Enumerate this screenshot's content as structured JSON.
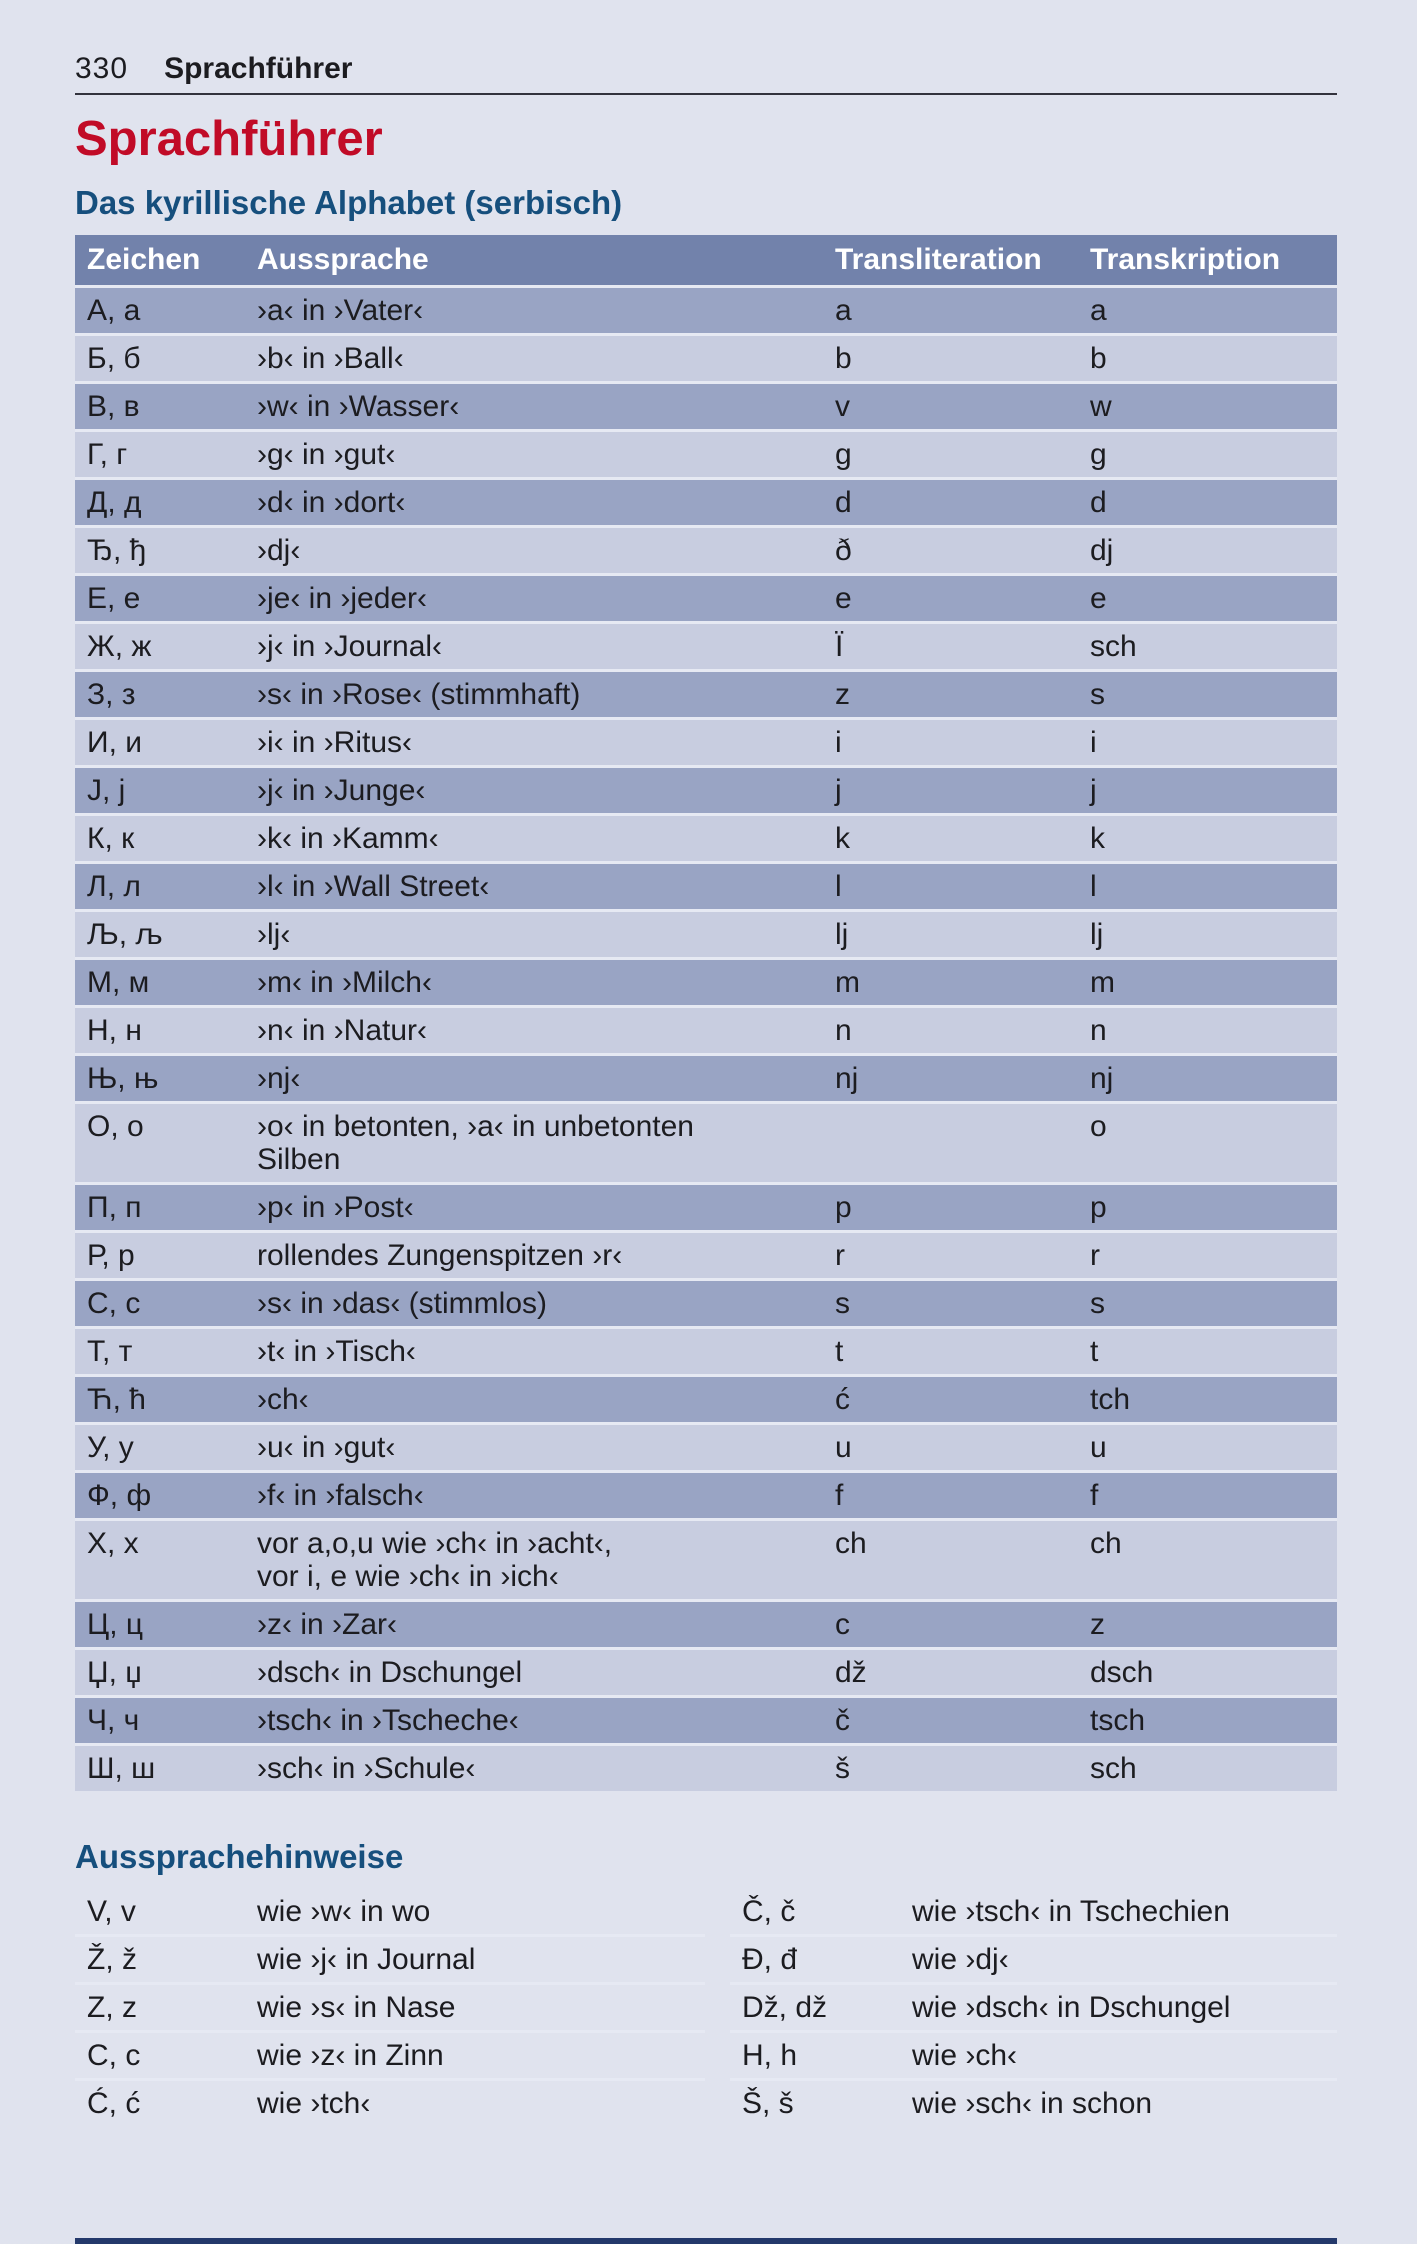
{
  "page": {
    "number": "330",
    "running_title": "Sprachführer"
  },
  "title": "Sprachführer",
  "alphabet": {
    "heading": "Das kyrillische Alphabet (serbisch)",
    "columns": {
      "zeichen": "Zeichen",
      "aussprache": "Aussprache",
      "transliteration": "Transliteration",
      "transkription": "Transkription"
    },
    "rows": [
      {
        "z": "А, а",
        "a": "›a‹ in ›Vater‹",
        "tl": "a",
        "tk": "a"
      },
      {
        "z": "Б, б",
        "a": "›b‹ in ›Ball‹",
        "tl": "b",
        "tk": "b"
      },
      {
        "z": "В, в",
        "a": "›w‹ in ›Wasser‹",
        "tl": "v",
        "tk": "w"
      },
      {
        "z": "Г, г",
        "a": "›g‹ in ›gut‹",
        "tl": "g",
        "tk": "g"
      },
      {
        "z": "Д, д",
        "a": "›d‹ in ›dort‹",
        "tl": "d",
        "tk": "d"
      },
      {
        "z": "Ђ, ђ",
        "a": "›dj‹",
        "tl": "ð",
        "tk": "dj"
      },
      {
        "z": "Е, е",
        "a": "›je‹ in ›jeder‹",
        "tl": "e",
        "tk": "e"
      },
      {
        "z": "Ж, ж",
        "a": "›j‹ in ›Journal‹",
        "tl": "Ï",
        "tk": "sch"
      },
      {
        "z": "З, з",
        "a": "›s‹ in ›Rose‹ (stimmhaft)",
        "tl": "z",
        "tk": "s"
      },
      {
        "z": "И, и",
        "a": "›i‹ in ›Ritus‹",
        "tl": "i",
        "tk": "i"
      },
      {
        "z": "Ј, ј",
        "a": "›j‹ in ›Junge‹",
        "tl": "j",
        "tk": "j"
      },
      {
        "z": "К, к",
        "a": "›k‹ in ›Kamm‹",
        "tl": "k",
        "tk": "k"
      },
      {
        "z": "Л, л",
        "a": "›l‹ in ›Wall Street‹",
        "tl": "l",
        "tk": "l"
      },
      {
        "z": "Љ, љ",
        "a": "›lj‹",
        "tl": "lj",
        "tk": "lj"
      },
      {
        "z": "М, м",
        "a": "›m‹ in ›Milch‹",
        "tl": "m",
        "tk": "m"
      },
      {
        "z": "Н, н",
        "a": "›n‹ in ›Natur‹",
        "tl": "n",
        "tk": "n"
      },
      {
        "z": "Њ, њ",
        "a": "›nj‹",
        "tl": "nj",
        "tk": "nj"
      },
      {
        "z": "О, о",
        "a": "›o‹ in betonten, ›a‹ in unbetonten\nSilben",
        "tl": "",
        "tk": "o"
      },
      {
        "z": "П, п",
        "a": "›p‹ in ›Post‹",
        "tl": "p",
        "tk": "p"
      },
      {
        "z": "Р, р",
        "a": "rollendes Zungenspitzen ›r‹",
        "tl": "r",
        "tk": "r"
      },
      {
        "z": "С, с",
        "a": "›s‹ in ›das‹ (stimmlos)",
        "tl": "s",
        "tk": "s"
      },
      {
        "z": "Т, т",
        "a": "›t‹ in ›Tisch‹",
        "tl": "t",
        "tk": "t"
      },
      {
        "z": "Ћ, ћ",
        "a": "›ch‹",
        "tl": "ć",
        "tk": "tch"
      },
      {
        "z": "У, у",
        "a": "›u‹ in ›gut‹",
        "tl": "u",
        "tk": "u"
      },
      {
        "z": "Ф, ф",
        "a": "›f‹ in ›falsch‹",
        "tl": "f",
        "tk": "f"
      },
      {
        "z": "Х, х",
        "a": "vor a,o,u wie ›ch‹ in ›acht‹,\nvor i, e wie ›ch‹ in ›ich‹",
        "tl": "ch",
        "tk": "ch"
      },
      {
        "z": "Ц, ц",
        "a": "›z‹ in ›Zar‹",
        "tl": "c",
        "tk": "z"
      },
      {
        "z": "Џ, џ",
        "a": "›dsch‹ in Dschungel",
        "tl": "dž",
        "tk": "dsch"
      },
      {
        "z": "Ч, ч",
        "a": "›tsch‹ in ›Tscheche‹",
        "tl": "č",
        "tk": "tsch"
      },
      {
        "z": "Ш, ш",
        "a": "›sch‹ in ›Schule‹",
        "tl": "š",
        "tk": "sch"
      }
    ]
  },
  "hints": {
    "heading": "Aussprachehinweise",
    "left": [
      {
        "z": "V, v",
        "a": "wie ›w‹ in wo"
      },
      {
        "z": "Ž, ž",
        "a": "wie ›j‹ in Journal"
      },
      {
        "z": "Z, z",
        "a": "wie ›s‹ in Nase"
      },
      {
        "z": "C, c",
        "a": "wie ›z‹ in Zinn"
      },
      {
        "z": "Ć, ć",
        "a": "wie ›tch‹"
      }
    ],
    "right": [
      {
        "z": "Č, č",
        "a": "wie ›tsch‹ in Tschechien"
      },
      {
        "z": "Đ, đ",
        "a": "wie ›dj‹"
      },
      {
        "z": "Dž, dž",
        "a": "wie ›dsch‹ in Dschungel"
      },
      {
        "z": "H, h",
        "a": "wie ›ch‹"
      },
      {
        "z": "Š, š",
        "a": "wie ›sch‹ in schon"
      }
    ]
  },
  "colors": {
    "page_bg": "#e0e3ee",
    "accent_red": "#c10b27",
    "heading_blue": "#164f7d",
    "thead_bg": "#7282ab",
    "row_dark": "#99a4c4",
    "row_light": "#c8cde0",
    "footer_bar": "#24396b"
  }
}
